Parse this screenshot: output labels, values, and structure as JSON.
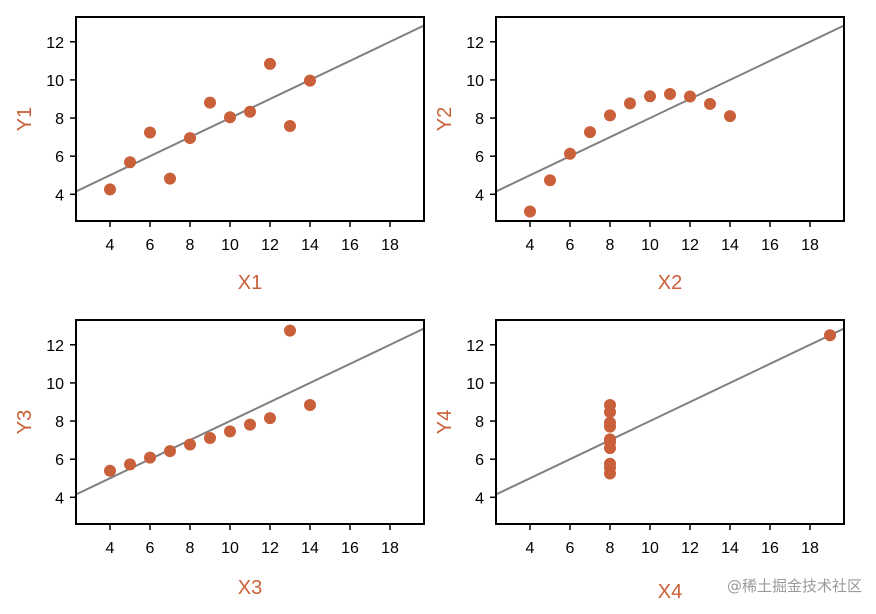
{
  "colors": {
    "point": "#c9603a",
    "fit_line": "#808080",
    "axis_label": "#c9603a",
    "frame": "#000000"
  },
  "watermark": "@稀土掘金技术社区",
  "chart_data": [
    {
      "type": "scatter",
      "xlabel": "X1",
      "ylabel": "Y1",
      "xlim": [
        2.3,
        19.7
      ],
      "ylim": [
        2.6,
        13.3
      ],
      "xticks": [
        4,
        6,
        8,
        10,
        12,
        14,
        16,
        18
      ],
      "yticks": [
        4,
        6,
        8,
        10,
        12
      ],
      "grid": false,
      "points": [
        {
          "x": 10,
          "y": 8.04
        },
        {
          "x": 8,
          "y": 6.95
        },
        {
          "x": 13,
          "y": 7.58
        },
        {
          "x": 9,
          "y": 8.81
        },
        {
          "x": 11,
          "y": 8.33
        },
        {
          "x": 14,
          "y": 9.96
        },
        {
          "x": 6,
          "y": 7.24
        },
        {
          "x": 4,
          "y": 4.26
        },
        {
          "x": 12,
          "y": 10.84
        },
        {
          "x": 7,
          "y": 4.82
        },
        {
          "x": 5,
          "y": 5.68
        }
      ],
      "fit": {
        "intercept": 3,
        "slope": 0.5
      }
    },
    {
      "type": "scatter",
      "xlabel": "X2",
      "ylabel": "Y2",
      "xlim": [
        2.3,
        19.7
      ],
      "ylim": [
        2.6,
        13.3
      ],
      "xticks": [
        4,
        6,
        8,
        10,
        12,
        14,
        16,
        18
      ],
      "yticks": [
        4,
        6,
        8,
        10,
        12
      ],
      "grid": false,
      "points": [
        {
          "x": 10,
          "y": 9.14
        },
        {
          "x": 8,
          "y": 8.14
        },
        {
          "x": 13,
          "y": 8.74
        },
        {
          "x": 9,
          "y": 8.77
        },
        {
          "x": 11,
          "y": 9.26
        },
        {
          "x": 14,
          "y": 8.1
        },
        {
          "x": 6,
          "y": 6.13
        },
        {
          "x": 4,
          "y": 3.1
        },
        {
          "x": 12,
          "y": 9.13
        },
        {
          "x": 7,
          "y": 7.26
        },
        {
          "x": 5,
          "y": 4.74
        }
      ],
      "fit": {
        "intercept": 3,
        "slope": 0.5
      }
    },
    {
      "type": "scatter",
      "xlabel": "X3",
      "ylabel": "Y3",
      "xlim": [
        2.3,
        19.7
      ],
      "ylim": [
        2.6,
        13.3
      ],
      "xticks": [
        4,
        6,
        8,
        10,
        12,
        14,
        16,
        18
      ],
      "yticks": [
        4,
        6,
        8,
        10,
        12
      ],
      "grid": false,
      "points": [
        {
          "x": 10,
          "y": 7.46
        },
        {
          "x": 8,
          "y": 6.77
        },
        {
          "x": 13,
          "y": 12.74
        },
        {
          "x": 9,
          "y": 7.11
        },
        {
          "x": 11,
          "y": 7.81
        },
        {
          "x": 14,
          "y": 8.84
        },
        {
          "x": 6,
          "y": 6.08
        },
        {
          "x": 4,
          "y": 5.39
        },
        {
          "x": 12,
          "y": 8.15
        },
        {
          "x": 7,
          "y": 6.42
        },
        {
          "x": 5,
          "y": 5.73
        }
      ],
      "fit": {
        "intercept": 3,
        "slope": 0.5
      }
    },
    {
      "type": "scatter",
      "xlabel": "X4",
      "ylabel": "Y4",
      "xlim": [
        2.3,
        19.7
      ],
      "ylim": [
        2.6,
        13.3
      ],
      "xticks": [
        4,
        6,
        8,
        10,
        12,
        14,
        16,
        18
      ],
      "yticks": [
        4,
        6,
        8,
        10,
        12
      ],
      "grid": false,
      "points": [
        {
          "x": 8,
          "y": 6.58
        },
        {
          "x": 8,
          "y": 5.76
        },
        {
          "x": 8,
          "y": 7.71
        },
        {
          "x": 8,
          "y": 8.84
        },
        {
          "x": 8,
          "y": 8.47
        },
        {
          "x": 8,
          "y": 7.04
        },
        {
          "x": 8,
          "y": 5.25
        },
        {
          "x": 19,
          "y": 12.5
        },
        {
          "x": 8,
          "y": 5.56
        },
        {
          "x": 8,
          "y": 7.91
        },
        {
          "x": 8,
          "y": 6.89
        }
      ],
      "fit": {
        "intercept": 3,
        "slope": 0.5
      }
    }
  ]
}
